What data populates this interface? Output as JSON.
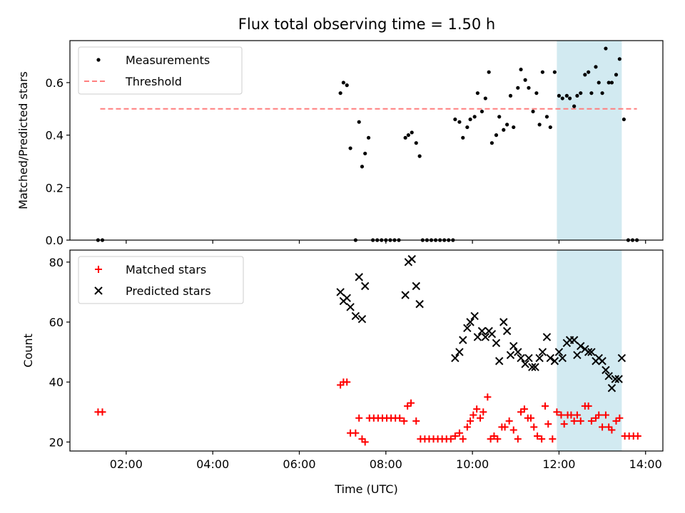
{
  "figure_title": "Flux total observing time = 1.50 h",
  "colors": {
    "measurement": "#000000",
    "threshold": "#ff7f7f",
    "matched": "#ff0000",
    "predicted": "#000000",
    "highlight": "#add8e6"
  },
  "chart_data": [
    {
      "type": "scatter",
      "ylabel": "Matched/Predicted stars",
      "xlabel": "",
      "ylim": [
        0,
        0.76
      ],
      "yticks": [
        0.0,
        0.2,
        0.4,
        0.6
      ],
      "ytick_labels": [
        "0.0",
        "0.2",
        "0.4",
        "0.6"
      ],
      "x_unit": "hours UTC",
      "xlim": [
        0.7,
        14.4
      ],
      "xticks": [
        2,
        4,
        6,
        8,
        10,
        12,
        14
      ],
      "xtick_labels": [
        "02:00",
        "04:00",
        "06:00",
        "08:00",
        "10:00",
        "12:00",
        "14:00"
      ],
      "legend": {
        "placement": "top-left",
        "entries": [
          "Measurements",
          "Threshold"
        ]
      },
      "highlight_span": [
        11.95,
        13.45
      ],
      "threshold": {
        "name": "Threshold",
        "y": 0.5,
        "x": [
          1.4,
          13.8
        ]
      },
      "series": [
        {
          "name": "Measurements",
          "points": [
            [
              1.35,
              0.0
            ],
            [
              1.45,
              0.0
            ],
            [
              6.95,
              0.56
            ],
            [
              7.02,
              0.6
            ],
            [
              7.1,
              0.59
            ],
            [
              7.18,
              0.35
            ],
            [
              7.3,
              0.0
            ],
            [
              7.38,
              0.45
            ],
            [
              7.45,
              0.28
            ],
            [
              7.52,
              0.33
            ],
            [
              7.6,
              0.39
            ],
            [
              7.7,
              0.0
            ],
            [
              7.8,
              0.0
            ],
            [
              7.9,
              0.0
            ],
            [
              8.0,
              0.0
            ],
            [
              8.1,
              0.0
            ],
            [
              8.2,
              0.0
            ],
            [
              8.3,
              0.0
            ],
            [
              8.45,
              0.39
            ],
            [
              8.52,
              0.4
            ],
            [
              8.6,
              0.41
            ],
            [
              8.7,
              0.37
            ],
            [
              8.78,
              0.32
            ],
            [
              8.85,
              0.0
            ],
            [
              8.95,
              0.0
            ],
            [
              9.05,
              0.0
            ],
            [
              9.15,
              0.0
            ],
            [
              9.25,
              0.0
            ],
            [
              9.35,
              0.0
            ],
            [
              9.45,
              0.0
            ],
            [
              9.55,
              0.0
            ],
            [
              9.6,
              0.46
            ],
            [
              9.7,
              0.45
            ],
            [
              9.78,
              0.39
            ],
            [
              9.88,
              0.43
            ],
            [
              9.95,
              0.46
            ],
            [
              10.05,
              0.47
            ],
            [
              10.12,
              0.56
            ],
            [
              10.22,
              0.49
            ],
            [
              10.3,
              0.54
            ],
            [
              10.38,
              0.64
            ],
            [
              10.45,
              0.37
            ],
            [
              10.55,
              0.4
            ],
            [
              10.62,
              0.47
            ],
            [
              10.72,
              0.42
            ],
            [
              10.8,
              0.44
            ],
            [
              10.88,
              0.55
            ],
            [
              10.95,
              0.43
            ],
            [
              11.05,
              0.58
            ],
            [
              11.12,
              0.65
            ],
            [
              11.22,
              0.61
            ],
            [
              11.3,
              0.58
            ],
            [
              11.4,
              0.49
            ],
            [
              11.48,
              0.56
            ],
            [
              11.55,
              0.44
            ],
            [
              11.62,
              0.64
            ],
            [
              11.72,
              0.47
            ],
            [
              11.8,
              0.43
            ],
            [
              11.9,
              0.64
            ],
            [
              12.0,
              0.55
            ],
            [
              12.08,
              0.54
            ],
            [
              12.18,
              0.55
            ],
            [
              12.25,
              0.54
            ],
            [
              12.35,
              0.51
            ],
            [
              12.42,
              0.55
            ],
            [
              12.5,
              0.56
            ],
            [
              12.6,
              0.63
            ],
            [
              12.68,
              0.64
            ],
            [
              12.75,
              0.56
            ],
            [
              12.85,
              0.66
            ],
            [
              12.92,
              0.6
            ],
            [
              13.0,
              0.56
            ],
            [
              13.08,
              0.73
            ],
            [
              13.15,
              0.6
            ],
            [
              13.22,
              0.6
            ],
            [
              13.32,
              0.63
            ],
            [
              13.4,
              0.69
            ],
            [
              13.5,
              0.46
            ],
            [
              13.6,
              0.0
            ],
            [
              13.7,
              0.0
            ],
            [
              13.8,
              0.0
            ]
          ]
        }
      ]
    },
    {
      "type": "scatter",
      "ylabel": "Count",
      "xlabel": "Time (UTC)",
      "ylim": [
        17,
        84
      ],
      "yticks": [
        20,
        40,
        60,
        80
      ],
      "ytick_labels": [
        "20",
        "40",
        "60",
        "80"
      ],
      "x_unit": "hours UTC",
      "xlim": [
        0.7,
        14.4
      ],
      "xticks": [
        2,
        4,
        6,
        8,
        10,
        12,
        14
      ],
      "xtick_labels": [
        "02:00",
        "04:00",
        "06:00",
        "08:00",
        "10:00",
        "12:00",
        "14:00"
      ],
      "legend": {
        "placement": "top-left",
        "entries": [
          "Matched stars",
          "Predicted stars"
        ]
      },
      "highlight_span": [
        11.95,
        13.45
      ],
      "series": [
        {
          "name": "Matched stars",
          "marker": "plus",
          "points": [
            [
              1.35,
              30
            ],
            [
              1.45,
              30
            ],
            [
              6.95,
              39
            ],
            [
              7.02,
              40
            ],
            [
              7.1,
              40
            ],
            [
              7.18,
              23
            ],
            [
              7.3,
              23
            ],
            [
              7.38,
              28
            ],
            [
              7.45,
              21
            ],
            [
              7.52,
              20
            ],
            [
              7.62,
              28
            ],
            [
              7.72,
              28
            ],
            [
              7.82,
              28
            ],
            [
              7.92,
              28
            ],
            [
              8.02,
              28
            ],
            [
              8.12,
              28
            ],
            [
              8.22,
              28
            ],
            [
              8.32,
              28
            ],
            [
              8.42,
              27
            ],
            [
              8.5,
              32
            ],
            [
              8.58,
              33
            ],
            [
              8.7,
              27
            ],
            [
              8.8,
              21
            ],
            [
              8.9,
              21
            ],
            [
              9.0,
              21
            ],
            [
              9.1,
              21
            ],
            [
              9.2,
              21
            ],
            [
              9.3,
              21
            ],
            [
              9.4,
              21
            ],
            [
              9.5,
              21
            ],
            [
              9.6,
              22
            ],
            [
              9.7,
              23
            ],
            [
              9.78,
              21
            ],
            [
              9.88,
              25
            ],
            [
              9.95,
              27
            ],
            [
              10.02,
              29
            ],
            [
              10.1,
              31
            ],
            [
              10.18,
              28
            ],
            [
              10.25,
              30
            ],
            [
              10.35,
              35
            ],
            [
              10.42,
              21
            ],
            [
              10.5,
              22
            ],
            [
              10.58,
              21
            ],
            [
              10.68,
              25
            ],
            [
              10.75,
              25
            ],
            [
              10.85,
              27
            ],
            [
              10.95,
              24
            ],
            [
              11.05,
              21
            ],
            [
              11.12,
              30
            ],
            [
              11.2,
              31
            ],
            [
              11.28,
              28
            ],
            [
              11.35,
              28
            ],
            [
              11.42,
              25
            ],
            [
              11.5,
              22
            ],
            [
              11.6,
              21
            ],
            [
              11.68,
              32
            ],
            [
              11.75,
              26
            ],
            [
              11.85,
              21
            ],
            [
              11.95,
              30
            ],
            [
              12.05,
              29
            ],
            [
              12.12,
              26
            ],
            [
              12.2,
              29
            ],
            [
              12.28,
              29
            ],
            [
              12.35,
              27
            ],
            [
              12.42,
              29
            ],
            [
              12.5,
              27
            ],
            [
              12.6,
              32
            ],
            [
              12.68,
              32
            ],
            [
              12.75,
              27
            ],
            [
              12.85,
              28
            ],
            [
              12.92,
              29
            ],
            [
              13.0,
              25
            ],
            [
              13.08,
              29
            ],
            [
              13.15,
              25
            ],
            [
              13.22,
              24
            ],
            [
              13.32,
              27
            ],
            [
              13.4,
              28
            ],
            [
              13.52,
              22
            ],
            [
              13.62,
              22
            ],
            [
              13.72,
              22
            ],
            [
              13.82,
              22
            ]
          ]
        },
        {
          "name": "Predicted stars",
          "marker": "x",
          "points": [
            [
              6.95,
              70
            ],
            [
              7.02,
              67
            ],
            [
              7.1,
              68
            ],
            [
              7.18,
              65
            ],
            [
              7.3,
              62
            ],
            [
              7.38,
              75
            ],
            [
              7.45,
              61
            ],
            [
              7.52,
              72
            ],
            [
              8.45,
              69
            ],
            [
              8.52,
              80
            ],
            [
              8.6,
              81
            ],
            [
              8.7,
              72
            ],
            [
              8.78,
              66
            ],
            [
              9.6,
              48
            ],
            [
              9.7,
              50
            ],
            [
              9.78,
              54
            ],
            [
              9.88,
              58
            ],
            [
              9.95,
              60
            ],
            [
              10.05,
              62
            ],
            [
              10.12,
              55
            ],
            [
              10.22,
              57
            ],
            [
              10.3,
              55
            ],
            [
              10.38,
              57
            ],
            [
              10.45,
              56
            ],
            [
              10.55,
              53
            ],
            [
              10.62,
              47
            ],
            [
              10.72,
              60
            ],
            [
              10.8,
              57
            ],
            [
              10.88,
              49
            ],
            [
              10.95,
              52
            ],
            [
              11.05,
              50
            ],
            [
              11.12,
              48
            ],
            [
              11.22,
              46
            ],
            [
              11.3,
              48
            ],
            [
              11.38,
              45
            ],
            [
              11.45,
              45
            ],
            [
              11.55,
              48
            ],
            [
              11.62,
              50
            ],
            [
              11.72,
              55
            ],
            [
              11.8,
              48
            ],
            [
              11.9,
              47
            ],
            [
              12.0,
              50
            ],
            [
              12.08,
              48
            ],
            [
              12.18,
              53
            ],
            [
              12.25,
              54
            ],
            [
              12.35,
              54
            ],
            [
              12.42,
              49
            ],
            [
              12.5,
              52
            ],
            [
              12.6,
              51
            ],
            [
              12.68,
              50
            ],
            [
              12.75,
              50
            ],
            [
              12.85,
              47
            ],
            [
              12.92,
              48
            ],
            [
              13.0,
              47
            ],
            [
              13.08,
              44
            ],
            [
              13.15,
              42
            ],
            [
              13.22,
              38
            ],
            [
              13.3,
              41
            ],
            [
              13.38,
              41
            ],
            [
              13.45,
              48
            ]
          ]
        }
      ]
    }
  ]
}
